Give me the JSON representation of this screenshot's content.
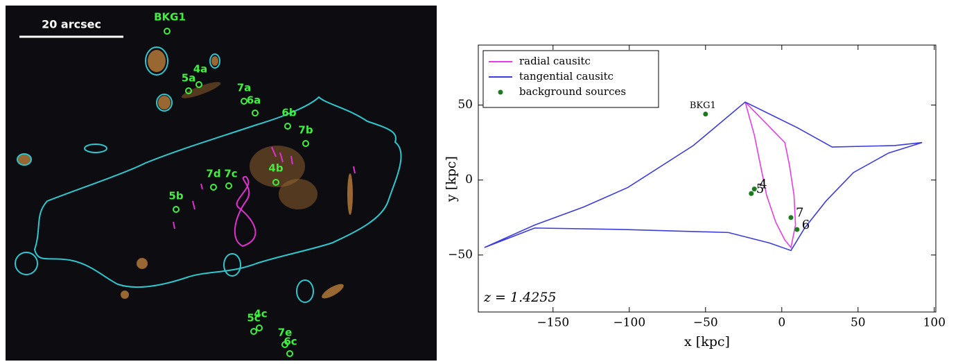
{
  "image": {
    "scale_bar": "20 arcsec",
    "labels": [
      "BKG1",
      "4a",
      "5a",
      "7a",
      "6a",
      "6b",
      "7b",
      "4b",
      "7d",
      "7c",
      "5b",
      "4c",
      "5c",
      "7e",
      "6c"
    ]
  },
  "chart_data": {
    "type": "scatter",
    "xlabel": "x [kpc]",
    "ylabel": "y [kpc]",
    "annotation": "z = 1.4255",
    "xlim": [
      -199,
      101
    ],
    "ylim": [
      -88,
      90
    ],
    "xticks": [
      {
        "value": -150,
        "label": "−150"
      },
      {
        "value": -100,
        "label": "−100"
      },
      {
        "value": -50,
        "label": "−50"
      },
      0,
      50,
      100
    ],
    "yticks": [
      {
        "value": -50,
        "label": "−50"
      },
      0,
      50
    ],
    "legend": "upper left",
    "series": [
      {
        "name": "radial causitc",
        "kind": "line",
        "color": "#e63ce6",
        "x": [
          -24,
          -18,
          -14,
          -10,
          -4,
          2,
          6,
          9,
          8,
          5,
          2,
          -24
        ],
        "y": [
          52,
          30,
          10,
          -10,
          -28,
          -40,
          -45,
          -30,
          -10,
          10,
          25,
          52
        ]
      },
      {
        "name": "tangential causitc",
        "kind": "line",
        "color": "#3b3be0",
        "x": [
          -195,
          -162,
          -103,
          -35,
          -8,
          6,
          15,
          29,
          47,
          70,
          92,
          74,
          33,
          10,
          -8,
          -24,
          -58,
          -101,
          -130,
          -162,
          -195
        ],
        "y": [
          -45,
          -32,
          -33,
          -35,
          -42,
          -47,
          -32,
          -14,
          5,
          18,
          25,
          23,
          22,
          35,
          44,
          52,
          23,
          -5,
          -18,
          -30,
          -45
        ]
      },
      {
        "name": "background sources",
        "kind": "points",
        "color": "#1b7a1b",
        "x": [
          -50,
          -18,
          -20,
          6,
          10
        ],
        "y": [
          44,
          -6,
          -9,
          -25,
          -33
        ],
        "labels": [
          "BKG1",
          "4",
          "5",
          "7",
          "6"
        ]
      }
    ]
  }
}
